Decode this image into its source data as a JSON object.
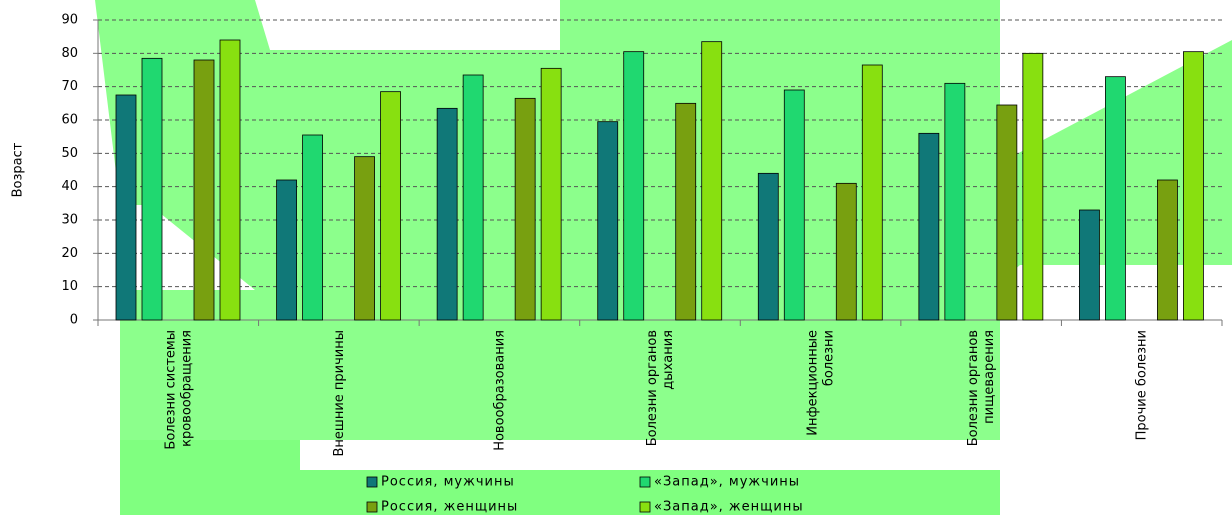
{
  "chart_data": {
    "type": "bar",
    "y_label": "Возраст",
    "categories": [
      "Болезни системы\nкровообращения",
      "Внешние причины",
      "Новообразования",
      "Болезни органов\nдыхания",
      "Инфекционные\nболезни",
      "Болезни органов\nпищеварения",
      "Прочие болезни"
    ],
    "series": [
      {
        "name": "Россия, мужчины",
        "color": "#107878",
        "values": [
          67.5,
          42,
          63.5,
          59.5,
          44,
          56,
          33
        ]
      },
      {
        "name": "«Запад», мужчины",
        "color": "#20d870",
        "values": [
          78.5,
          55.5,
          73.5,
          80.5,
          69,
          71,
          73
        ]
      },
      {
        "name": "Россия, женщины",
        "color": "#78a010",
        "values": [
          78,
          49,
          66.5,
          65,
          41,
          64.5,
          42
        ]
      },
      {
        "name": "«Запад», женщины",
        "color": "#88e010",
        "values": [
          84,
          68.5,
          75.5,
          83.5,
          76.5,
          80,
          80.5
        ]
      }
    ],
    "ylim": [
      0,
      90
    ],
    "yticks": [
      0,
      10,
      20,
      30,
      40,
      50,
      60,
      70,
      80,
      90
    ],
    "grid": true
  }
}
